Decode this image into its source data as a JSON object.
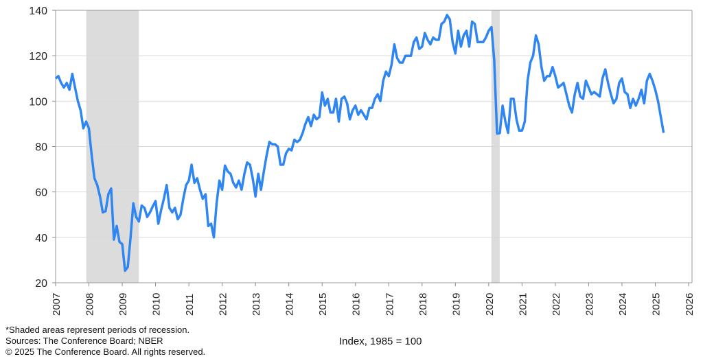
{
  "chart_data": {
    "type": "line",
    "title": "",
    "xlabel": "",
    "ylabel": "",
    "ylim": [
      20,
      140
    ],
    "yticks": [
      20,
      40,
      60,
      80,
      100,
      120,
      140
    ],
    "xlim": [
      2007,
      2026
    ],
    "xticks": [
      "2007",
      "2008",
      "2009",
      "2010",
      "2011",
      "2012",
      "2013",
      "2014",
      "2015",
      "2016",
      "2017",
      "2018",
      "2019",
      "2020",
      "2021",
      "2022",
      "2023",
      "2024",
      "2025",
      "2026"
    ],
    "grid": "horizontal",
    "line_color": "#2f86f0",
    "recession_color": "#dcdcdc",
    "recessions": [
      [
        2007.92,
        2009.5
      ],
      [
        2020.08,
        2020.33
      ]
    ],
    "series": [
      {
        "year": 2007,
        "monthly": [
          110,
          111,
          108,
          106,
          108,
          105,
          112,
          106,
          100,
          96,
          88,
          91
        ]
      },
      {
        "year": 2008,
        "monthly": [
          88,
          76,
          66,
          63,
          58,
          51,
          51.5,
          59,
          61.5,
          39,
          45,
          38
        ]
      },
      {
        "year": 2009,
        "monthly": [
          37,
          25.3,
          26.9,
          40,
          55,
          49,
          47,
          54,
          53,
          49,
          51,
          53.6
        ]
      },
      {
        "year": 2010,
        "monthly": [
          56,
          46,
          52,
          57,
          63,
          53,
          51,
          53,
          48,
          50,
          57,
          63
        ]
      },
      {
        "year": 2011,
        "monthly": [
          65,
          72,
          64,
          66,
          61,
          57,
          59,
          45,
          46,
          40,
          55,
          65
        ]
      },
      {
        "year": 2012,
        "monthly": [
          61,
          71.6,
          69,
          68,
          64,
          62,
          65,
          61,
          68,
          73,
          72,
          66
        ]
      },
      {
        "year": 2013,
        "monthly": [
          58,
          68,
          61,
          69,
          76,
          82,
          81,
          81,
          80,
          72,
          72,
          77
        ]
      },
      {
        "year": 2014,
        "monthly": [
          79,
          78.3,
          83,
          82,
          83,
          86,
          90,
          93,
          89,
          94,
          92,
          93
        ]
      },
      {
        "year": 2015,
        "monthly": [
          103.8,
          98,
          101,
          95,
          95,
          101,
          91,
          101,
          102,
          99,
          92,
          96
        ]
      },
      {
        "year": 2016,
        "monthly": [
          98,
          94,
          96,
          94,
          92,
          97,
          97,
          101,
          103,
          100,
          109,
          113
        ]
      },
      {
        "year": 2017,
        "monthly": [
          111,
          116,
          125,
          119,
          117,
          117,
          120,
          120,
          120,
          126,
          128,
          123
        ]
      },
      {
        "year": 2018,
        "monthly": [
          124,
          130,
          127,
          125,
          128,
          127,
          127,
          134,
          135,
          137.9,
          136,
          126
        ]
      },
      {
        "year": 2019,
        "monthly": [
          121,
          131,
          124,
          129,
          131,
          124,
          135,
          134,
          126,
          126,
          126,
          128
        ]
      },
      {
        "year": 2020,
        "monthly": [
          131,
          132.6,
          118,
          85.7,
          85.9,
          98,
          91,
          86,
          101,
          101,
          92,
          87
        ]
      },
      {
        "year": 2021,
        "monthly": [
          87,
          91,
          109,
          117,
          120,
          128.9,
          125,
          115,
          109,
          111,
          111,
          115
        ]
      },
      {
        "year": 2022,
        "monthly": [
          111,
          106,
          107,
          108,
          103,
          98,
          95,
          103,
          108,
          102,
          101,
          109
        ]
      },
      {
        "year": 2023,
        "monthly": [
          106,
          103,
          104,
          103,
          102,
          110,
          114,
          108,
          103,
          99,
          101,
          108
        ]
      },
      {
        "year": 2024,
        "monthly": [
          110,
          104,
          103,
          97,
          101,
          98,
          101,
          105,
          99,
          109,
          112,
          109
        ]
      },
      {
        "year": 2025,
        "monthly": [
          105,
          100,
          93,
          86
        ]
      }
    ]
  },
  "footer": {
    "note": "*Shaded areas represent periods of recession.",
    "sources": "Sources: The Conference Board;  NBER",
    "copyright": "© 2025 The Conference Board. All rights reserved.",
    "index_label": "Index, 1985 = 100"
  }
}
